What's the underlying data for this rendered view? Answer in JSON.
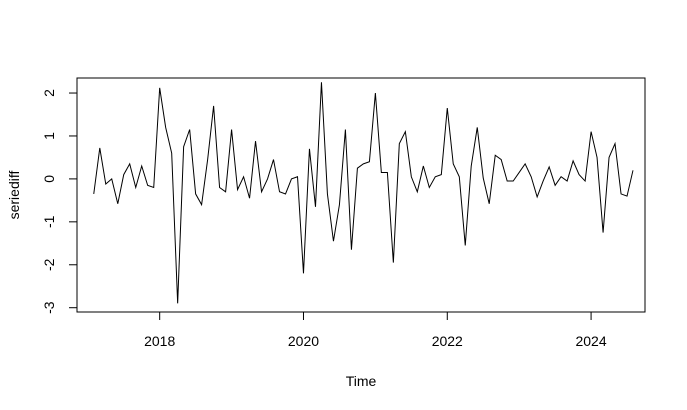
{
  "chart_data": {
    "type": "line",
    "title": "",
    "xlabel": "Time",
    "ylabel": "seriediff",
    "xlim": [
      2016.85,
      2024.75
    ],
    "ylim": [
      -3.1,
      2.35
    ],
    "x_ticks": [
      2018,
      2020,
      2022,
      2024
    ],
    "x_tick_labels": [
      "2018",
      "2020",
      "2022",
      "2024"
    ],
    "y_ticks": [
      -3,
      -2,
      -1,
      0,
      1,
      2
    ],
    "y_tick_labels": [
      "-3",
      "-2",
      "-1",
      "0",
      "1",
      "2"
    ],
    "grid": false,
    "line_color": "#000000",
    "series": [
      {
        "x": [
          2017.083,
          2017.167,
          2017.25,
          2017.333,
          2017.417,
          2017.5,
          2017.583,
          2017.667,
          2017.75,
          2017.833,
          2017.917,
          2018.0,
          2018.083,
          2018.167,
          2018.25,
          2018.333,
          2018.417,
          2018.5,
          2018.583,
          2018.667,
          2018.75,
          2018.833,
          2018.917,
          2019.0,
          2019.083,
          2019.167,
          2019.25,
          2019.333,
          2019.417,
          2019.5,
          2019.583,
          2019.667,
          2019.75,
          2019.833,
          2019.917,
          2020.0,
          2020.083,
          2020.167,
          2020.25,
          2020.333,
          2020.417,
          2020.5,
          2020.583,
          2020.667,
          2020.75,
          2020.833,
          2020.917,
          2021.0,
          2021.083,
          2021.167,
          2021.25,
          2021.333,
          2021.417,
          2021.5,
          2021.583,
          2021.667,
          2021.75,
          2021.833,
          2021.917,
          2022.0,
          2022.083,
          2022.167,
          2022.25,
          2022.333,
          2022.417,
          2022.5,
          2022.583,
          2022.667,
          2022.75,
          2022.833,
          2022.917,
          2023.0,
          2023.083,
          2023.167,
          2023.25,
          2023.333,
          2023.417,
          2023.5,
          2023.583,
          2023.667,
          2023.75,
          2023.833,
          2023.917,
          2024.0,
          2024.083,
          2024.167,
          2024.25,
          2024.333,
          2024.417,
          2024.5,
          2024.583
        ],
        "values": [
          -0.35,
          0.72,
          -0.12,
          0.0,
          -0.58,
          0.1,
          0.35,
          -0.2,
          0.3,
          -0.15,
          -0.2,
          2.12,
          1.2,
          0.6,
          -2.9,
          0.75,
          1.15,
          -0.35,
          -0.6,
          0.45,
          1.7,
          -0.2,
          -0.3,
          1.15,
          -0.25,
          0.05,
          -0.45,
          0.88,
          -0.3,
          0.0,
          0.45,
          -0.3,
          -0.35,
          0.0,
          0.05,
          -2.2,
          0.7,
          -0.65,
          2.25,
          -0.35,
          -1.45,
          -0.6,
          1.15,
          -1.65,
          0.25,
          0.35,
          0.4,
          2.0,
          0.15,
          0.15,
          -1.95,
          0.82,
          1.1,
          0.05,
          -0.3,
          0.3,
          -0.2,
          0.05,
          0.1,
          1.65,
          0.35,
          0.05,
          -1.55,
          0.3,
          1.2,
          0.02,
          -0.58,
          0.55,
          0.45,
          -0.05,
          -0.05,
          0.15,
          0.35,
          0.05,
          -0.42,
          -0.05,
          0.28,
          -0.15,
          0.05,
          -0.05,
          0.42,
          0.1,
          -0.05,
          1.1,
          0.5,
          -1.25,
          0.5,
          0.82,
          -0.35,
          -0.4,
          0.2
        ]
      }
    ]
  }
}
